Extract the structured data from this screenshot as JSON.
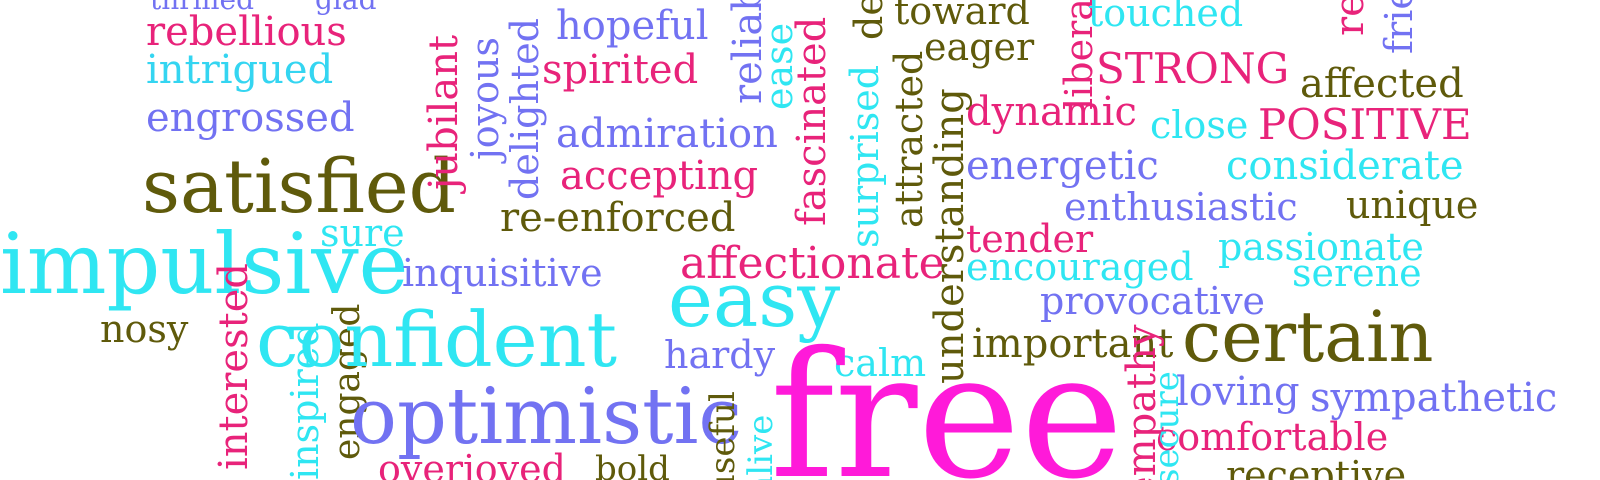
{
  "palette": {
    "pink": "#e8237a",
    "magenta": "#ff1ad9",
    "cyan": "#2fe6f2",
    "aqua": "#34d5f1",
    "periwinkle": "#7272f2",
    "olive": "#5f5a0b",
    "background": "#ffffff"
  },
  "words": [
    {
      "text": "thrilled",
      "color": "periwinkle"
    },
    {
      "text": "glad",
      "color": "periwinkle"
    },
    {
      "text": "rebellious",
      "color": "pink"
    },
    {
      "text": "intrigued",
      "color": "aqua"
    },
    {
      "text": "engrossed",
      "color": "periwinkle"
    },
    {
      "text": "satisfied",
      "color": "olive"
    },
    {
      "text": "impulsive",
      "color": "cyan"
    },
    {
      "text": "sure",
      "color": "cyan"
    },
    {
      "text": "nosy",
      "color": "olive"
    },
    {
      "text": "interested",
      "color": "pink"
    },
    {
      "text": "inspired",
      "color": "cyan"
    },
    {
      "text": "engaged",
      "color": "olive"
    },
    {
      "text": "jubilant",
      "color": "pink"
    },
    {
      "text": "joyous",
      "color": "periwinkle"
    },
    {
      "text": "delighted",
      "color": "periwinkle"
    },
    {
      "text": "hopeful",
      "color": "periwinkle"
    },
    {
      "text": "spirited",
      "color": "pink"
    },
    {
      "text": "admiration",
      "color": "periwinkle"
    },
    {
      "text": "accepting",
      "color": "pink"
    },
    {
      "text": "re-enforced",
      "color": "olive"
    },
    {
      "text": "inquisitive",
      "color": "periwinkle"
    },
    {
      "text": "confident",
      "color": "cyan"
    },
    {
      "text": "optimistic",
      "color": "periwinkle"
    },
    {
      "text": "overjoyed",
      "color": "pink"
    },
    {
      "text": "bold",
      "color": "olive"
    },
    {
      "text": "hardy",
      "color": "periwinkle"
    },
    {
      "text": "easy",
      "color": "cyan"
    },
    {
      "text": "affectionate",
      "color": "pink"
    },
    {
      "text": "calm",
      "color": "cyan"
    },
    {
      "text": "free",
      "color": "magenta"
    },
    {
      "text": "reliable",
      "color": "periwinkle"
    },
    {
      "text": "ease",
      "color": "cyan"
    },
    {
      "text": "fascinated",
      "color": "pink"
    },
    {
      "text": "surprised",
      "color": "cyan"
    },
    {
      "text": "determined",
      "color": "olive"
    },
    {
      "text": "attracted",
      "color": "olive"
    },
    {
      "text": "toward",
      "color": "olive"
    },
    {
      "text": "understanding",
      "color": "olive"
    },
    {
      "text": "eager",
      "color": "olive"
    },
    {
      "text": "liberated",
      "color": "pink"
    },
    {
      "text": "touched",
      "color": "cyan"
    },
    {
      "text": "STRONG",
      "color": "pink"
    },
    {
      "text": "affected",
      "color": "olive"
    },
    {
      "text": "dynamic",
      "color": "pink"
    },
    {
      "text": "close",
      "color": "cyan"
    },
    {
      "text": "POSITIVE",
      "color": "pink"
    },
    {
      "text": "energetic",
      "color": "periwinkle"
    },
    {
      "text": "considerate",
      "color": "cyan"
    },
    {
      "text": "enthusiastic",
      "color": "periwinkle"
    },
    {
      "text": "unique",
      "color": "olive"
    },
    {
      "text": "tender",
      "color": "pink"
    },
    {
      "text": "passionate",
      "color": "cyan"
    },
    {
      "text": "encouraged",
      "color": "cyan"
    },
    {
      "text": "serene",
      "color": "cyan"
    },
    {
      "text": "provocative",
      "color": "periwinkle"
    },
    {
      "text": "important",
      "color": "olive"
    },
    {
      "text": "certain",
      "color": "olive"
    },
    {
      "text": "loving",
      "color": "periwinkle"
    },
    {
      "text": "sympathetic",
      "color": "periwinkle"
    },
    {
      "text": "comfortable",
      "color": "pink"
    },
    {
      "text": "receptive",
      "color": "olive"
    },
    {
      "text": "empathy",
      "color": "pink"
    },
    {
      "text": "reliable",
      "color": "pink"
    },
    {
      "text": "friendly",
      "color": "periwinkle"
    },
    {
      "text": "useful",
      "color": "olive"
    },
    {
      "text": "alive",
      "color": "cyan"
    },
    {
      "text": "secure",
      "color": "cyan"
    }
  ]
}
